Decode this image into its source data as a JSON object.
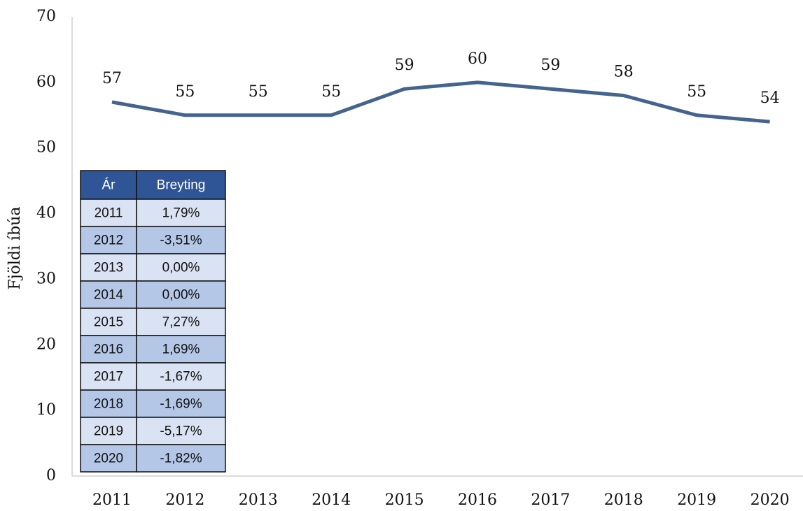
{
  "chart_data": {
    "type": "line",
    "y_label": "Fjöldi íbúa",
    "categories": [
      "2011",
      "2012",
      "2013",
      "2014",
      "2015",
      "2016",
      "2017",
      "2018",
      "2019",
      "2020"
    ],
    "values": [
      57,
      55,
      55,
      55,
      59,
      60,
      59,
      58,
      55,
      54
    ],
    "color": "#44648f",
    "ylim": [
      0,
      70
    ],
    "yticks": [
      0,
      10,
      20,
      30,
      40,
      50,
      60,
      70
    ],
    "grid": false
  },
  "table": {
    "columns": [
      "Ár",
      "Breyting"
    ],
    "rows": [
      [
        "2011",
        "1,79%"
      ],
      [
        "2012",
        "-3,51%"
      ],
      [
        "2013",
        "0,00%"
      ],
      [
        "2014",
        "0,00%"
      ],
      [
        "2015",
        "7,27%"
      ],
      [
        "2016",
        "1,69%"
      ],
      [
        "2017",
        "-1,67%"
      ],
      [
        "2018",
        "-1,69%"
      ],
      [
        "2019",
        "-5,17%"
      ],
      [
        "2020",
        "-1,82%"
      ]
    ]
  }
}
